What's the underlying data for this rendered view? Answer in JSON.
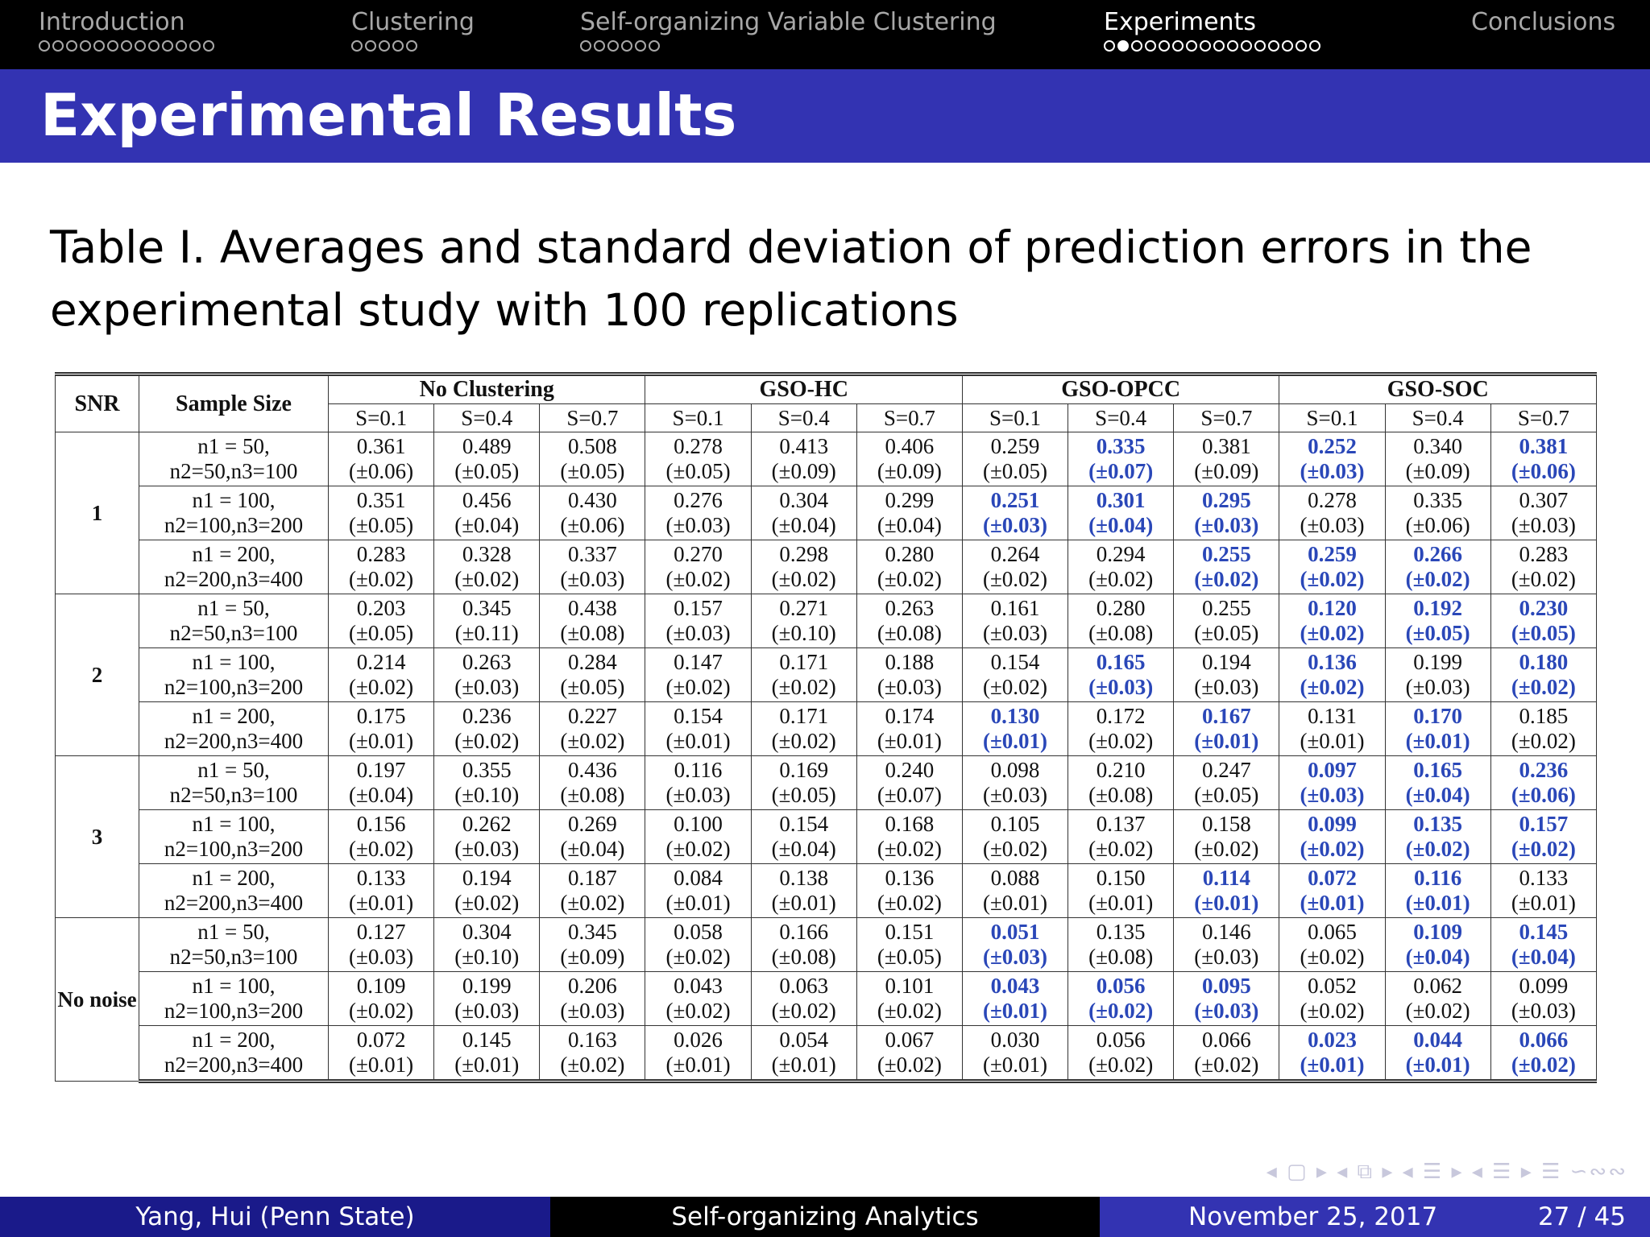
{
  "nav": {
    "sections": [
      {
        "label": "Introduction",
        "dots": 13,
        "filled": -1,
        "active": false
      },
      {
        "label": "Clustering",
        "dots": 5,
        "filled": -1,
        "active": false
      },
      {
        "label": "Self-organizing Variable Clustering",
        "dots": 6,
        "filled": -1,
        "active": false
      },
      {
        "label": "Experiments",
        "dots": 16,
        "filled": 1,
        "active": true
      },
      {
        "label": "Conclusions",
        "dots": 0,
        "filled": -1,
        "active": false
      }
    ]
  },
  "slide": {
    "title": "Experimental Results",
    "caption": "Table I. Averages and standard deviation of prediction errors in the experimental study with 100 replications"
  },
  "table": {
    "col_snr": "SNR",
    "col_sample": "Sample Size",
    "groups": [
      "No Clustering",
      "GSO-HC",
      "GSO-OPCC",
      "GSO-SOC"
    ],
    "s_values": [
      "S=0.1",
      "S=0.4",
      "S=0.7"
    ],
    "blocks": [
      {
        "snr": "1",
        "rows": [
          {
            "n1": "n1 = 50,",
            "n23": "n2=50,n3=100",
            "cells": [
              [
                "0.361",
                "(±0.06)",
                0
              ],
              [
                "0.489",
                "(±0.05)",
                0
              ],
              [
                "0.508",
                "(±0.05)",
                0
              ],
              [
                "0.278",
                "(±0.05)",
                0
              ],
              [
                "0.413",
                "(±0.09)",
                0
              ],
              [
                "0.406",
                "(±0.09)",
                0
              ],
              [
                "0.259",
                "(±0.05)",
                0
              ],
              [
                "0.335",
                "(±0.07)",
                1
              ],
              [
                "0.381",
                "(±0.09)",
                0
              ],
              [
                "0.252",
                "(±0.03)",
                1
              ],
              [
                "0.340",
                "(±0.09)",
                0
              ],
              [
                "0.381",
                "(±0.06)",
                1
              ]
            ]
          },
          {
            "n1": "n1 = 100,",
            "n23": "n2=100,n3=200",
            "cells": [
              [
                "0.351",
                "(±0.05)",
                0
              ],
              [
                "0.456",
                "(±0.04)",
                0
              ],
              [
                "0.430",
                "(±0.06)",
                0
              ],
              [
                "0.276",
                "(±0.03)",
                0
              ],
              [
                "0.304",
                "(±0.04)",
                0
              ],
              [
                "0.299",
                "(±0.04)",
                0
              ],
              [
                "0.251",
                "(±0.03)",
                1
              ],
              [
                "0.301",
                "(±0.04)",
                1
              ],
              [
                "0.295",
                "(±0.03)",
                1
              ],
              [
                "0.278",
                "(±0.03)",
                0
              ],
              [
                "0.335",
                "(±0.06)",
                0
              ],
              [
                "0.307",
                "(±0.03)",
                0
              ]
            ]
          },
          {
            "n1": "n1 = 200,",
            "n23": "n2=200,n3=400",
            "cells": [
              [
                "0.283",
                "(±0.02)",
                0
              ],
              [
                "0.328",
                "(±0.02)",
                0
              ],
              [
                "0.337",
                "(±0.03)",
                0
              ],
              [
                "0.270",
                "(±0.02)",
                0
              ],
              [
                "0.298",
                "(±0.02)",
                0
              ],
              [
                "0.280",
                "(±0.02)",
                0
              ],
              [
                "0.264",
                "(±0.02)",
                0
              ],
              [
                "0.294",
                "(±0.02)",
                0
              ],
              [
                "0.255",
                "(±0.02)",
                1
              ],
              [
                "0.259",
                "(±0.02)",
                1
              ],
              [
                "0.266",
                "(±0.02)",
                1
              ],
              [
                "0.283",
                "(±0.02)",
                0
              ]
            ]
          }
        ]
      },
      {
        "snr": "2",
        "rows": [
          {
            "n1": "n1 = 50,",
            "n23": "n2=50,n3=100",
            "cells": [
              [
                "0.203",
                "(±0.05)",
                0
              ],
              [
                "0.345",
                "(±0.11)",
                0
              ],
              [
                "0.438",
                "(±0.08)",
                0
              ],
              [
                "0.157",
                "(±0.03)",
                0
              ],
              [
                "0.271",
                "(±0.10)",
                0
              ],
              [
                "0.263",
                "(±0.08)",
                0
              ],
              [
                "0.161",
                "(±0.03)",
                0
              ],
              [
                "0.280",
                "(±0.08)",
                0
              ],
              [
                "0.255",
                "(±0.05)",
                0
              ],
              [
                "0.120",
                "(±0.02)",
                1
              ],
              [
                "0.192",
                "(±0.05)",
                1
              ],
              [
                "0.230",
                "(±0.05)",
                1
              ]
            ]
          },
          {
            "n1": "n1 = 100,",
            "n23": "n2=100,n3=200",
            "cells": [
              [
                "0.214",
                "(±0.02)",
                0
              ],
              [
                "0.263",
                "(±0.03)",
                0
              ],
              [
                "0.284",
                "(±0.05)",
                0
              ],
              [
                "0.147",
                "(±0.02)",
                0
              ],
              [
                "0.171",
                "(±0.02)",
                0
              ],
              [
                "0.188",
                "(±0.03)",
                0
              ],
              [
                "0.154",
                "(±0.02)",
                0
              ],
              [
                "0.165",
                "(±0.03)",
                1
              ],
              [
                "0.194",
                "(±0.03)",
                0
              ],
              [
                "0.136",
                "(±0.02)",
                1
              ],
              [
                "0.199",
                "(±0.03)",
                0
              ],
              [
                "0.180",
                "(±0.02)",
                1
              ]
            ]
          },
          {
            "n1": "n1 = 200,",
            "n23": "n2=200,n3=400",
            "cells": [
              [
                "0.175",
                "(±0.01)",
                0
              ],
              [
                "0.236",
                "(±0.02)",
                0
              ],
              [
                "0.227",
                "(±0.02)",
                0
              ],
              [
                "0.154",
                "(±0.01)",
                0
              ],
              [
                "0.171",
                "(±0.02)",
                0
              ],
              [
                "0.174",
                "(±0.01)",
                0
              ],
              [
                "0.130",
                "(±0.01)",
                1
              ],
              [
                "0.172",
                "(±0.02)",
                0
              ],
              [
                "0.167",
                "(±0.01)",
                1
              ],
              [
                "0.131",
                "(±0.01)",
                0
              ],
              [
                "0.170",
                "(±0.01)",
                1
              ],
              [
                "0.185",
                "(±0.02)",
                0
              ]
            ]
          }
        ]
      },
      {
        "snr": "3",
        "rows": [
          {
            "n1": "n1 = 50,",
            "n23": "n2=50,n3=100",
            "cells": [
              [
                "0.197",
                "(±0.04)",
                0
              ],
              [
                "0.355",
                "(±0.10)",
                0
              ],
              [
                "0.436",
                "(±0.08)",
                0
              ],
              [
                "0.116",
                "(±0.03)",
                0
              ],
              [
                "0.169",
                "(±0.05)",
                0
              ],
              [
                "0.240",
                "(±0.07)",
                0
              ],
              [
                "0.098",
                "(±0.03)",
                0
              ],
              [
                "0.210",
                "(±0.08)",
                0
              ],
              [
                "0.247",
                "(±0.05)",
                0
              ],
              [
                "0.097",
                "(±0.03)",
                1
              ],
              [
                "0.165",
                "(±0.04)",
                1
              ],
              [
                "0.236",
                "(±0.06)",
                1
              ]
            ]
          },
          {
            "n1": "n1 = 100,",
            "n23": "n2=100,n3=200",
            "cells": [
              [
                "0.156",
                "(±0.02)",
                0
              ],
              [
                "0.262",
                "(±0.03)",
                0
              ],
              [
                "0.269",
                "(±0.04)",
                0
              ],
              [
                "0.100",
                "(±0.02)",
                0
              ],
              [
                "0.154",
                "(±0.04)",
                0
              ],
              [
                "0.168",
                "(±0.02)",
                0
              ],
              [
                "0.105",
                "(±0.02)",
                0
              ],
              [
                "0.137",
                "(±0.02)",
                0
              ],
              [
                "0.158",
                "(±0.02)",
                0
              ],
              [
                "0.099",
                "(±0.02)",
                1
              ],
              [
                "0.135",
                "(±0.02)",
                1
              ],
              [
                "0.157",
                "(±0.02)",
                1
              ]
            ]
          },
          {
            "n1": "n1 = 200,",
            "n23": "n2=200,n3=400",
            "cells": [
              [
                "0.133",
                "(±0.01)",
                0
              ],
              [
                "0.194",
                "(±0.02)",
                0
              ],
              [
                "0.187",
                "(±0.02)",
                0
              ],
              [
                "0.084",
                "(±0.01)",
                0
              ],
              [
                "0.138",
                "(±0.01)",
                0
              ],
              [
                "0.136",
                "(±0.02)",
                0
              ],
              [
                "0.088",
                "(±0.01)",
                0
              ],
              [
                "0.150",
                "(±0.01)",
                0
              ],
              [
                "0.114",
                "(±0.01)",
                1
              ],
              [
                "0.072",
                "(±0.01)",
                1
              ],
              [
                "0.116",
                "(±0.01)",
                1
              ],
              [
                "0.133",
                "(±0.01)",
                0
              ]
            ]
          }
        ]
      },
      {
        "snr": "No noise",
        "rows": [
          {
            "n1": "n1 = 50,",
            "n23": "n2=50,n3=100",
            "cells": [
              [
                "0.127",
                "(±0.03)",
                0
              ],
              [
                "0.304",
                "(±0.10)",
                0
              ],
              [
                "0.345",
                "(±0.09)",
                0
              ],
              [
                "0.058",
                "(±0.02)",
                0
              ],
              [
                "0.166",
                "(±0.08)",
                0
              ],
              [
                "0.151",
                "(±0.05)",
                0
              ],
              [
                "0.051",
                "(±0.03)",
                1
              ],
              [
                "0.135",
                "(±0.08)",
                0
              ],
              [
                "0.146",
                "(±0.03)",
                0
              ],
              [
                "0.065",
                "(±0.02)",
                0
              ],
              [
                "0.109",
                "(±0.04)",
                1
              ],
              [
                "0.145",
                "(±0.04)",
                1
              ]
            ]
          },
          {
            "n1": "n1 = 100,",
            "n23": "n2=100,n3=200",
            "cells": [
              [
                "0.109",
                "(±0.02)",
                0
              ],
              [
                "0.199",
                "(±0.03)",
                0
              ],
              [
                "0.206",
                "(±0.03)",
                0
              ],
              [
                "0.043",
                "(±0.02)",
                0
              ],
              [
                "0.063",
                "(±0.02)",
                0
              ],
              [
                "0.101",
                "(±0.02)",
                0
              ],
              [
                "0.043",
                "(±0.01)",
                1
              ],
              [
                "0.056",
                "(±0.02)",
                1
              ],
              [
                "0.095",
                "(±0.03)",
                1
              ],
              [
                "0.052",
                "(±0.02)",
                0
              ],
              [
                "0.062",
                "(±0.02)",
                0
              ],
              [
                "0.099",
                "(±0.03)",
                0
              ]
            ]
          },
          {
            "n1": "n1 = 200,",
            "n23": "n2=200,n3=400",
            "cells": [
              [
                "0.072",
                "(±0.01)",
                0
              ],
              [
                "0.145",
                "(±0.01)",
                0
              ],
              [
                "0.163",
                "(±0.02)",
                0
              ],
              [
                "0.026",
                "(±0.01)",
                0
              ],
              [
                "0.054",
                "(±0.01)",
                0
              ],
              [
                "0.067",
                "(±0.02)",
                0
              ],
              [
                "0.030",
                "(±0.01)",
                0
              ],
              [
                "0.056",
                "(±0.02)",
                0
              ],
              [
                "0.066",
                "(±0.02)",
                0
              ],
              [
                "0.023",
                "(±0.01)",
                1
              ],
              [
                "0.044",
                "(±0.01)",
                1
              ],
              [
                "0.066",
                "(±0.02)",
                1
              ]
            ]
          }
        ]
      }
    ]
  },
  "beamer_nav_icons": "◂ ▢ ▸ ◂ ⧉ ▸ ◂ ☰ ▸ ◂ ☰ ▸ ☰ ∽∾∾",
  "footer": {
    "author": "Yang, Hui  (Penn State)",
    "title": "Self-organizing Analytics",
    "date": "November 25, 2017",
    "page": "27 / 45"
  }
}
